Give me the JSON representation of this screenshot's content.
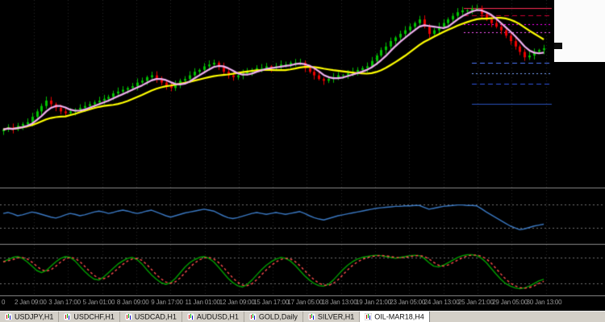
{
  "colors": {
    "background": "#000000",
    "candle_up": "#00c000",
    "candle_down": "#e80000",
    "fast_ma": "#f0b0f0",
    "slow_ma": "#ffff00",
    "separator": "#8a8a8a",
    "grid": "#262626",
    "panel_level": "#707070",
    "axis_text": "#9a9a9a",
    "tab_bar_bg": "#d4d0c8",
    "tab_active_bg": "#ffffff"
  },
  "time_axis": {
    "labels": [
      "0",
      "2 Jan 09:00",
      "3 Jan 17:00",
      "5 Jan 01:00",
      "8 Jan 09:00",
      "9 Jan 17:00",
      "11 Jan 01:00",
      "12 Jan 09:00",
      "15 Jan 17:00",
      "17 Jan 05:00",
      "18 Jan 13:00",
      "19 Jan 21:00",
      "23 Jan 05:00",
      "24 Jan 13:00",
      "25 Jan 21:00",
      "29 Jan 05:00",
      "30 Jan 13:00"
    ]
  },
  "tabs_bar": {
    "tabs": [
      {
        "label": "USDJPY,H1",
        "active": false
      },
      {
        "label": "USDCHF,H1",
        "active": false
      },
      {
        "label": "USDCAD,H1",
        "active": false
      },
      {
        "label": "AUDUSD,H1",
        "active": false
      },
      {
        "label": "GOLD,Daily",
        "active": false
      },
      {
        "label": "SILVER,H1",
        "active": false
      },
      {
        "label": "OIL-MAR18,H4",
        "active": true
      }
    ]
  },
  "chart_data": [
    {
      "type": "candlestick",
      "name": "main-price-chart",
      "title": "OIL-MAR18,H4",
      "ylim": [
        0,
        100
      ],
      "closes": [
        30,
        31,
        30,
        32,
        33,
        34,
        37,
        40,
        43,
        46,
        44,
        42,
        40,
        39,
        40,
        41,
        42,
        43,
        44,
        45,
        46,
        47,
        48,
        50,
        51,
        52,
        53,
        54,
        56,
        57,
        59,
        60,
        58,
        56,
        54,
        53,
        55,
        57,
        58,
        60,
        62,
        63,
        65,
        66,
        67,
        65,
        62,
        60,
        59,
        60,
        61,
        62,
        63,
        64,
        64,
        65,
        64,
        65,
        66,
        66,
        67,
        67,
        67,
        64,
        62,
        60,
        58,
        57,
        58,
        59,
        60,
        60,
        61,
        62,
        63,
        64,
        65,
        68,
        71,
        74,
        76,
        79,
        81,
        83,
        85,
        87,
        89,
        91,
        87,
        83,
        85,
        87,
        89,
        91,
        93,
        95,
        96,
        96,
        97,
        97,
        94,
        91,
        89,
        87,
        85,
        82,
        79,
        76,
        73,
        70,
        71,
        73,
        74,
        75
      ],
      "overlays": [
        {
          "name": "fast-ma",
          "type": "sma",
          "window": 5,
          "color": "#f0b0f0"
        },
        {
          "name": "slow-ma",
          "type": "sma",
          "window": 14,
          "color": "#ffff00"
        }
      ],
      "levels": [
        {
          "value": 97.4,
          "color": "#ff2d55",
          "style": "solid",
          "x_start": 575
        },
        {
          "value": 93.2,
          "color": "#cc0033",
          "style": "dash",
          "x_start": 575
        },
        {
          "value": 88.2,
          "color": "#ff00ff",
          "style": "dot",
          "x_start": 575
        },
        {
          "value": 83.8,
          "color": "#ff55ff",
          "style": "dot",
          "x_start": 575
        },
        {
          "value": 67.0,
          "color": "#4d79ff",
          "style": "dash",
          "x_start": 585
        },
        {
          "value": 61.3,
          "color": "#7aa4ff",
          "style": "dot",
          "x_start": 585
        },
        {
          "value": 55.3,
          "color": "#2f55e0",
          "style": "dash",
          "x_start": 585
        },
        {
          "value": 44.2,
          "color": "#2a52be",
          "style": "solid",
          "x_start": 585
        }
      ]
    },
    {
      "type": "line",
      "name": "momentum-indicator",
      "color": "#3a78c2",
      "ylim": [
        0,
        100
      ],
      "values": [
        55,
        57,
        54,
        50,
        52,
        55,
        58,
        56,
        53,
        50,
        47,
        45,
        48,
        52,
        55,
        53,
        50,
        52,
        55,
        58,
        60,
        58,
        55,
        57,
        60,
        62,
        60,
        57,
        55,
        57,
        60,
        62,
        58,
        54,
        50,
        47,
        50,
        53,
        56,
        58,
        60,
        62,
        64,
        62,
        60,
        55,
        50,
        46,
        44,
        46,
        49,
        52,
        55,
        57,
        55,
        53,
        55,
        57,
        55,
        53,
        55,
        57,
        59,
        55,
        50,
        46,
        43,
        41,
        44,
        47,
        50,
        52,
        54,
        56,
        58,
        60,
        62,
        64,
        66,
        67,
        68,
        69,
        70,
        70,
        71,
        71,
        72,
        72,
        68,
        64,
        66,
        68,
        70,
        71,
        72,
        73,
        73,
        72,
        72,
        71,
        65,
        58,
        52,
        46,
        40,
        34,
        28,
        24,
        20,
        22,
        25,
        28,
        30,
        32
      ],
      "levels": [
        {
          "value": 75,
          "style": "dot"
        },
        {
          "value": 25,
          "style": "dot"
        }
      ]
    },
    {
      "type": "line",
      "name": "oscillator-indicator",
      "ylim": [
        0,
        100
      ],
      "series": [
        {
          "name": "main",
          "color": "#00a000",
          "style": "solid",
          "values": [
            70,
            75,
            80,
            82,
            78,
            70,
            60,
            50,
            45,
            50,
            60,
            70,
            78,
            82,
            80,
            72,
            60,
            48,
            38,
            30,
            28,
            35,
            45,
            55,
            65,
            72,
            78,
            80,
            75,
            65,
            52,
            40,
            30,
            22,
            18,
            22,
            32,
            45,
            58,
            68,
            75,
            80,
            82,
            78,
            70,
            58,
            45,
            32,
            22,
            15,
            12,
            18,
            28,
            40,
            52,
            62,
            70,
            76,
            80,
            78,
            72,
            62,
            50,
            38,
            28,
            20,
            15,
            14,
            18,
            28,
            40,
            52,
            62,
            70,
            76,
            80,
            82,
            84,
            85,
            84,
            82,
            80,
            78,
            80,
            82,
            84,
            85,
            84,
            78,
            68,
            60,
            58,
            62,
            68,
            74,
            80,
            84,
            86,
            86,
            84,
            78,
            68,
            55,
            42,
            30,
            20,
            14,
            10,
            8,
            10,
            14,
            20,
            26,
            30
          ]
        },
        {
          "name": "signal",
          "color": "#ff4d4d",
          "style": "dot",
          "derived": "sma3-of-main"
        }
      ],
      "levels": [
        {
          "value": 80,
          "style": "dot"
        },
        {
          "value": 20,
          "style": "dot"
        }
      ]
    }
  ]
}
